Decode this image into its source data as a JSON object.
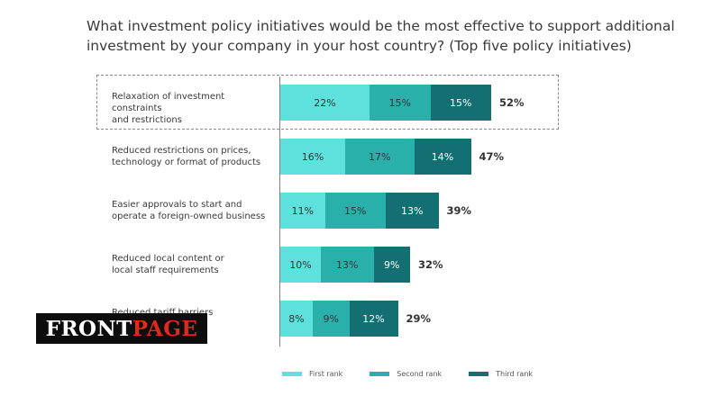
{
  "chart_data": {
    "type": "bar",
    "stacked": true,
    "orientation": "horizontal",
    "title": "What investment policy initiatives would be the most effective to support additional investment by your company in your host country? (Top five policy initiatives)",
    "categories": [
      [
        "Relaxation of investment constraints",
        "and restrictions"
      ],
      [
        "Reduced restrictions on prices,",
        "technology or format of products"
      ],
      [
        "Easier approvals to start and",
        "operate a foreign-owned business"
      ],
      [
        "Reduced local content or",
        "local staff requirements"
      ],
      [
        "Reduced tariff barriers",
        ""
      ]
    ],
    "series": [
      {
        "name": "First rank",
        "values": [
          22,
          16,
          11,
          10,
          8
        ],
        "color": "#5ee0dc"
      },
      {
        "name": "Second rank",
        "values": [
          15,
          17,
          15,
          13,
          9
        ],
        "color": "#2ab0ab"
      },
      {
        "name": "Third rank",
        "values": [
          15,
          14,
          13,
          9,
          12
        ],
        "color": "#146f72"
      }
    ],
    "totals": [
      52,
      47,
      39,
      32,
      29
    ],
    "highlighted_category": 0,
    "xlabel": "",
    "ylabel": "",
    "xlim": [
      0,
      60
    ],
    "legend_position": "bottom"
  },
  "watermark": {
    "part1": "FRONT",
    "part2": "PAGE"
  }
}
